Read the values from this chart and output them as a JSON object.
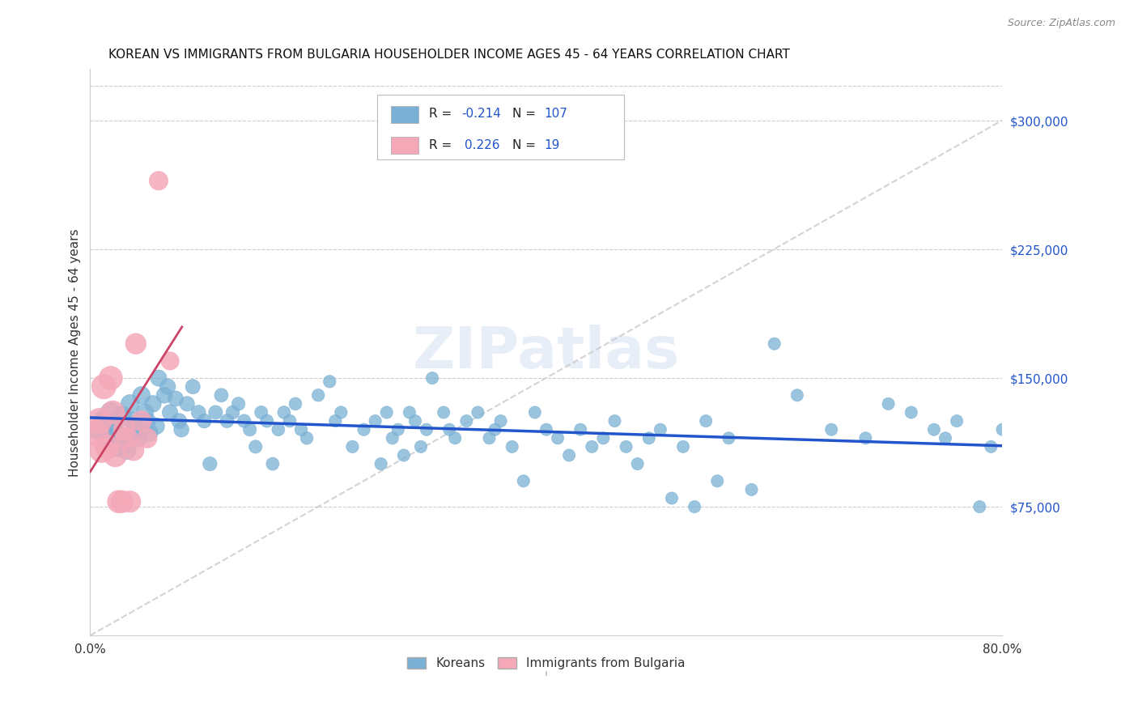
{
  "title": "KOREAN VS IMMIGRANTS FROM BULGARIA HOUSEHOLDER INCOME AGES 45 - 64 YEARS CORRELATION CHART",
  "source": "Source: ZipAtlas.com",
  "ylabel": "Householder Income Ages 45 - 64 years",
  "xlim": [
    0.0,
    0.8
  ],
  "ylim": [
    0,
    330000
  ],
  "xticks": [
    0.0,
    0.1,
    0.2,
    0.3,
    0.4,
    0.5,
    0.6,
    0.7,
    0.8
  ],
  "yticks_right": [
    75000,
    150000,
    225000,
    300000
  ],
  "ytick_labels_right": [
    "$75,000",
    "$150,000",
    "$225,000",
    "$300,000"
  ],
  "watermark": "ZIPatlas",
  "legend_entries": [
    {
      "color": "#a8c4e0",
      "R": "-0.214",
      "N": "107"
    },
    {
      "color": "#f4a8b8",
      "R": "0.226",
      "N": "19"
    }
  ],
  "legend_labels_bottom": [
    "Koreans",
    "Immigrants from Bulgaria"
  ],
  "korean_color": "#7ab0d4",
  "bulgaria_color": "#f4a8b8",
  "trend_korean_color": "#2255cc",
  "trend_bulgaria_color": "#cc4466",
  "diag_color": "#cccccc",
  "korean_x": [
    0.008,
    0.012,
    0.015,
    0.018,
    0.02,
    0.022,
    0.025,
    0.028,
    0.03,
    0.032,
    0.035,
    0.038,
    0.04,
    0.042,
    0.045,
    0.048,
    0.05,
    0.052,
    0.055,
    0.058,
    0.06,
    0.065,
    0.068,
    0.07,
    0.075,
    0.078,
    0.08,
    0.085,
    0.09,
    0.095,
    0.1,
    0.105,
    0.11,
    0.115,
    0.12,
    0.125,
    0.13,
    0.135,
    0.14,
    0.145,
    0.15,
    0.155,
    0.16,
    0.165,
    0.17,
    0.175,
    0.18,
    0.185,
    0.19,
    0.2,
    0.21,
    0.215,
    0.22,
    0.23,
    0.24,
    0.25,
    0.255,
    0.26,
    0.265,
    0.27,
    0.275,
    0.28,
    0.285,
    0.29,
    0.295,
    0.3,
    0.31,
    0.315,
    0.32,
    0.33,
    0.34,
    0.35,
    0.355,
    0.36,
    0.37,
    0.38,
    0.39,
    0.4,
    0.41,
    0.42,
    0.43,
    0.44,
    0.45,
    0.46,
    0.47,
    0.48,
    0.49,
    0.5,
    0.51,
    0.52,
    0.53,
    0.54,
    0.55,
    0.56,
    0.58,
    0.6,
    0.62,
    0.65,
    0.68,
    0.7,
    0.72,
    0.74,
    0.75,
    0.76,
    0.78,
    0.79,
    0.8
  ],
  "korean_y": [
    120000,
    125000,
    115000,
    130000,
    122000,
    118000,
    110000,
    128000,
    112000,
    108000,
    135000,
    125000,
    120000,
    115000,
    140000,
    130000,
    125000,
    118000,
    135000,
    122000,
    150000,
    140000,
    145000,
    130000,
    138000,
    125000,
    120000,
    135000,
    145000,
    130000,
    125000,
    100000,
    130000,
    140000,
    125000,
    130000,
    135000,
    125000,
    120000,
    110000,
    130000,
    125000,
    100000,
    120000,
    130000,
    125000,
    135000,
    120000,
    115000,
    140000,
    148000,
    125000,
    130000,
    110000,
    120000,
    125000,
    100000,
    130000,
    115000,
    120000,
    105000,
    130000,
    125000,
    110000,
    120000,
    150000,
    130000,
    120000,
    115000,
    125000,
    130000,
    115000,
    120000,
    125000,
    110000,
    90000,
    130000,
    120000,
    115000,
    105000,
    120000,
    110000,
    115000,
    125000,
    110000,
    100000,
    115000,
    120000,
    80000,
    110000,
    75000,
    125000,
    90000,
    115000,
    85000,
    170000,
    140000,
    120000,
    115000,
    135000,
    130000,
    120000,
    115000,
    125000,
    75000,
    110000,
    120000
  ],
  "bulgaria_x": [
    0.005,
    0.008,
    0.01,
    0.012,
    0.015,
    0.018,
    0.02,
    0.022,
    0.025,
    0.028,
    0.03,
    0.032,
    0.035,
    0.038,
    0.04,
    0.045,
    0.05,
    0.06,
    0.07
  ],
  "bulgaria_y": [
    118000,
    125000,
    108000,
    145000,
    110000,
    150000,
    130000,
    105000,
    78000,
    78000,
    120000,
    115000,
    78000,
    108000,
    170000,
    125000,
    115000,
    265000,
    160000
  ]
}
